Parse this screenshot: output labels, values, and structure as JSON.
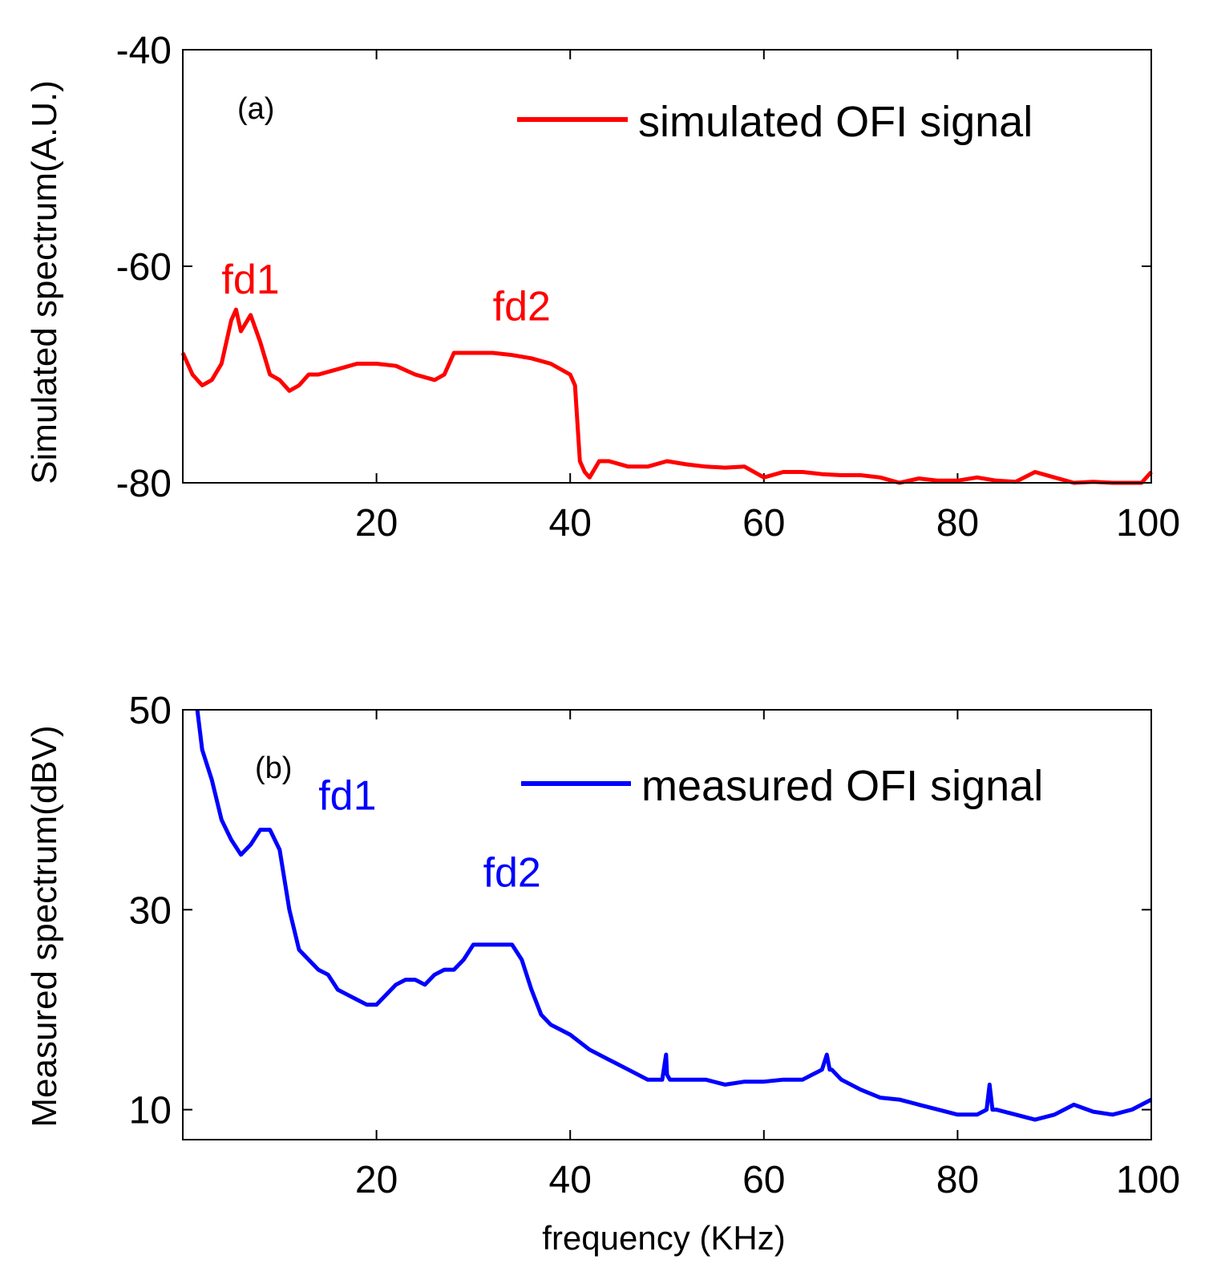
{
  "colors": {
    "panel_a": "#ff0000",
    "panel_b": "#0000ff",
    "axis": "#000000"
  },
  "chart_data": [
    {
      "type": "line",
      "panel_label": "(a)",
      "title": "",
      "xlabel": "",
      "ylabel": "Simulated spectrum(A.U.)",
      "xlim": [
        0,
        100
      ],
      "ylim": [
        -80,
        -40
      ],
      "xticks": [
        20,
        40,
        60,
        80,
        100
      ],
      "yticks": [
        -80,
        -60,
        -40
      ],
      "xtick_labels": [
        "20",
        "40",
        "60",
        "80",
        "100"
      ],
      "ytick_labels": [
        "-80",
        "-60",
        "-40"
      ],
      "grid": false,
      "legend_position": "top-right",
      "series": [
        {
          "name": "simulated OFI signal",
          "color": "#ff0000",
          "x": [
            0,
            1,
            2,
            3,
            4,
            5,
            5.5,
            6,
            7,
            8,
            9,
            10,
            11,
            12,
            13,
            14,
            16,
            18,
            20,
            22,
            24,
            26,
            27,
            28,
            30,
            32,
            34,
            36,
            38,
            40,
            40.5,
            41,
            41.5,
            42,
            43,
            44,
            46,
            48,
            50,
            52,
            54,
            56,
            58,
            60,
            62,
            64,
            66,
            68,
            70,
            72,
            74,
            76,
            78,
            80,
            82,
            84,
            86,
            88,
            90,
            92,
            94,
            96,
            98,
            99,
            100
          ],
          "y": [
            -68,
            -70,
            -71,
            -70.5,
            -69,
            -65,
            -64,
            -66,
            -64.5,
            -67,
            -70,
            -70.5,
            -71.5,
            -71,
            -70,
            -70,
            -69.5,
            -69,
            -69,
            -69.2,
            -70,
            -70.5,
            -70,
            -68,
            -68,
            -68,
            -68.2,
            -68.5,
            -69,
            -70,
            -71,
            -78,
            -79,
            -79.5,
            -78,
            -78,
            -78.5,
            -78.5,
            -78,
            -78.3,
            -78.5,
            -78.6,
            -78.5,
            -79.5,
            -79,
            -79,
            -79.2,
            -79.3,
            -79.3,
            -79.5,
            -80,
            -79.6,
            -79.8,
            -79.8,
            -79.5,
            -79.8,
            -79.9,
            -79,
            -79.5,
            -80,
            -79.9,
            -80,
            -80,
            -80,
            -79
          ]
        }
      ],
      "annotations": [
        {
          "text": "fd1",
          "x": 7,
          "y": -62.5
        },
        {
          "text": "fd2",
          "x": 35,
          "y": -65
        }
      ]
    },
    {
      "type": "line",
      "panel_label": "(b)",
      "title": "",
      "xlabel": "frequency (KHz)",
      "ylabel": "Measured spectrum(dBV)",
      "xlim": [
        0,
        100
      ],
      "ylim": [
        7,
        50
      ],
      "xticks": [
        20,
        40,
        60,
        80,
        100
      ],
      "yticks": [
        10,
        30,
        50
      ],
      "xtick_labels": [
        "20",
        "40",
        "60",
        "80",
        "100"
      ],
      "ytick_labels": [
        "10",
        "30",
        "50"
      ],
      "grid": false,
      "legend_position": "top-right",
      "series": [
        {
          "name": "measured OFI signal",
          "color": "#0000ff",
          "x": [
            1.5,
            2,
            3,
            4,
            5,
            6,
            7,
            8,
            9,
            10,
            11,
            12,
            13,
            14,
            15,
            16,
            17,
            18,
            19,
            20,
            21,
            22,
            23,
            24,
            25,
            26,
            27,
            28,
            29,
            30,
            31,
            32,
            33,
            34,
            35,
            36,
            37,
            38,
            39,
            40,
            42,
            44,
            46,
            48,
            49.5,
            49.9,
            50,
            50.3,
            51,
            52,
            54,
            56,
            58,
            60,
            62,
            64,
            66,
            66.5,
            66.8,
            67,
            68,
            70,
            72,
            74,
            76,
            78,
            80,
            82,
            83,
            83.3,
            83.6,
            84,
            86,
            88,
            90,
            92,
            94,
            96,
            98,
            100
          ],
          "y": [
            50,
            46,
            43,
            39,
            37,
            35.5,
            36.5,
            38,
            38,
            36,
            30,
            26,
            25,
            24,
            23.5,
            22,
            21.5,
            21,
            20.5,
            20.5,
            21.5,
            22.5,
            23,
            23,
            22.5,
            23.5,
            24,
            24,
            25,
            26.5,
            26.5,
            26.5,
            26.5,
            26.5,
            25,
            22,
            19.5,
            18.5,
            18,
            17.5,
            16,
            15,
            14,
            13,
            13,
            15.5,
            13.5,
            13,
            13,
            13,
            13,
            12.5,
            12.8,
            12.8,
            13,
            13,
            14,
            15.5,
            14,
            14,
            13,
            12,
            11.2,
            11,
            10.5,
            10,
            9.5,
            9.5,
            10,
            12.5,
            10,
            10,
            9.5,
            9,
            9.5,
            10.5,
            9.8,
            9.5,
            10,
            11
          ]
        }
      ],
      "annotations": [
        {
          "text": "fd1",
          "x": 17,
          "y": 40
        },
        {
          "text": "fd2",
          "x": 34,
          "y": 32.3
        }
      ]
    }
  ]
}
